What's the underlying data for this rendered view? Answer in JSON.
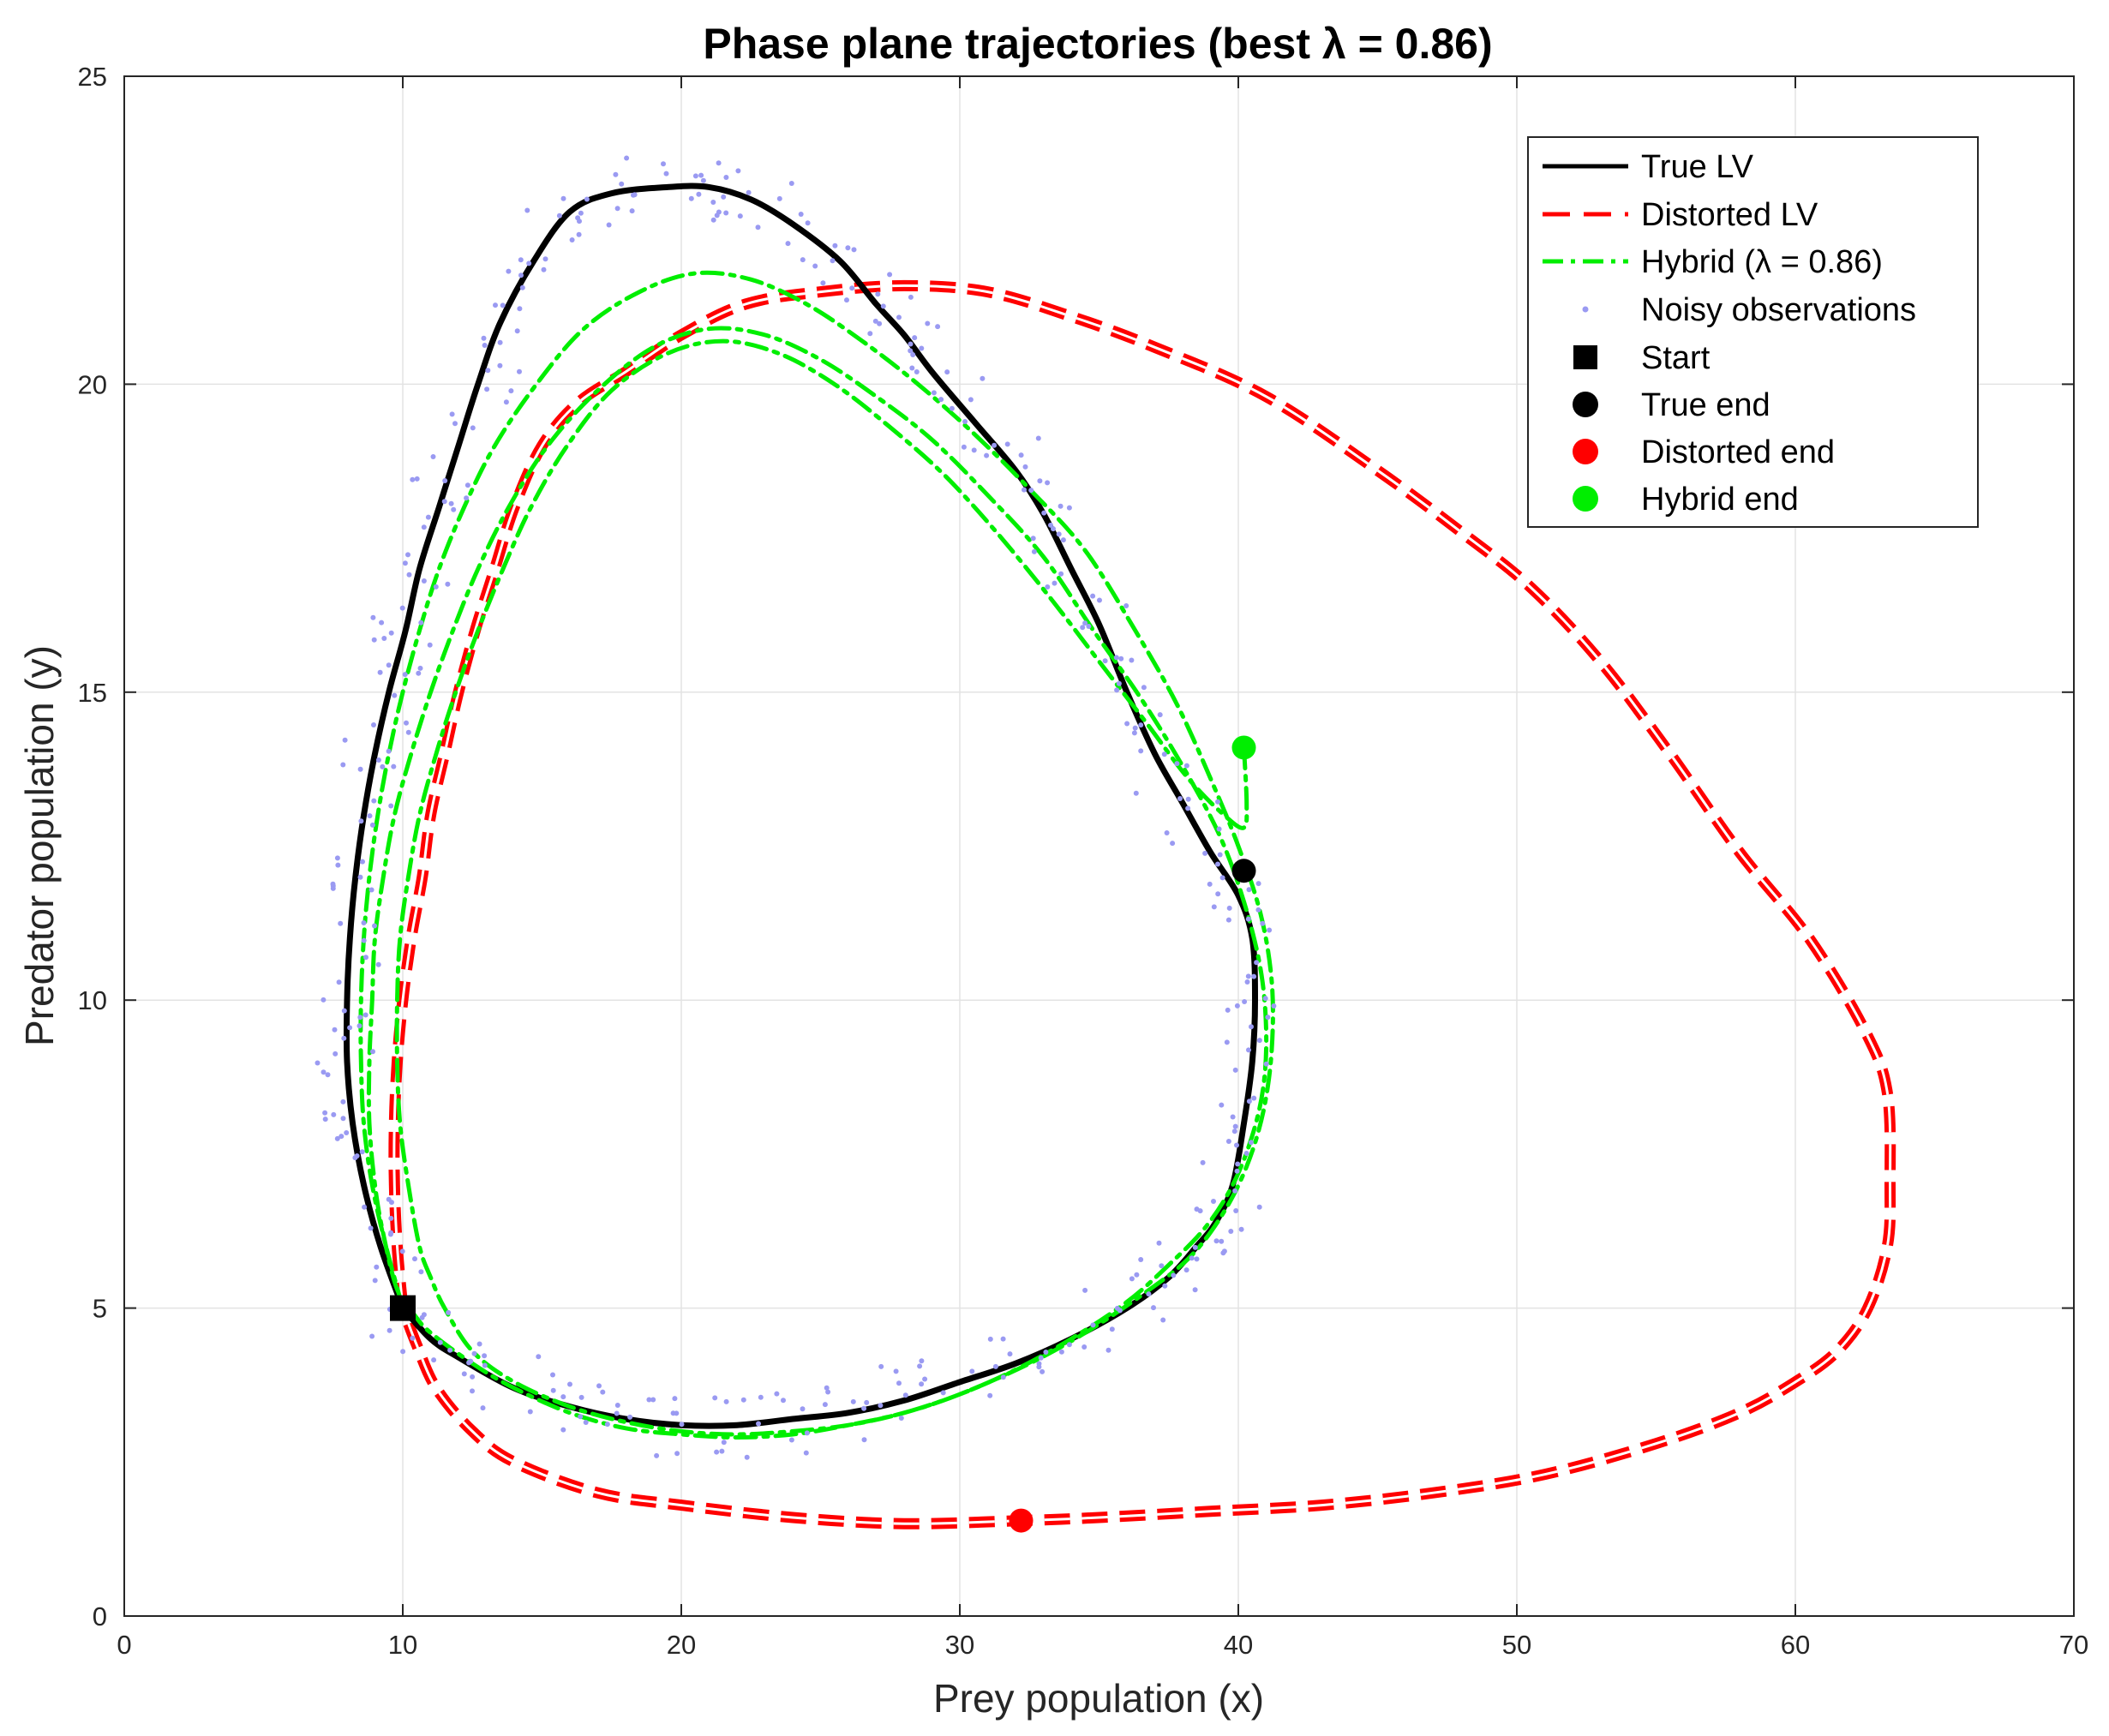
{
  "chart_data": {
    "type": "line",
    "title": "Phase plane trajectories (best λ = 0.86)",
    "xlabel": "Prey population (x)",
    "ylabel": "Predator population (y)",
    "xlim": [
      0,
      70
    ],
    "ylim": [
      0,
      25
    ],
    "xticks": [
      "0",
      "10",
      "20",
      "30",
      "40",
      "50",
      "60",
      "70"
    ],
    "yticks": [
      "0",
      "5",
      "10",
      "15",
      "20",
      "25"
    ],
    "grid": true,
    "legend_position": "top-right",
    "colors": {
      "true": "#000000",
      "distorted": "#ff0000",
      "hybrid": "#00ee00",
      "noise": "#9a9af2"
    },
    "series": [
      {
        "name": "True LV",
        "style": "solid",
        "color": "#000000",
        "points": [
          [
            10,
            5
          ],
          [
            9.2,
            6
          ],
          [
            8.6,
            7
          ],
          [
            8.2,
            8
          ],
          [
            8,
            9
          ],
          [
            8,
            10
          ],
          [
            8.1,
            11
          ],
          [
            8.3,
            12
          ],
          [
            8.6,
            13
          ],
          [
            9,
            14
          ],
          [
            9.5,
            15
          ],
          [
            10.1,
            16
          ],
          [
            10.6,
            17
          ],
          [
            11.3,
            18
          ],
          [
            12,
            19
          ],
          [
            12.7,
            20
          ],
          [
            13.5,
            21
          ],
          [
            14.7,
            22
          ],
          [
            16,
            22.8
          ],
          [
            17.5,
            23.1
          ],
          [
            19.5,
            23.2
          ],
          [
            21,
            23.2
          ],
          [
            22.5,
            23
          ],
          [
            24,
            22.6
          ],
          [
            25.7,
            22
          ],
          [
            27,
            21.3
          ],
          [
            28,
            20.8
          ],
          [
            29,
            20.2
          ],
          [
            30.5,
            19.4
          ],
          [
            32,
            18.6
          ],
          [
            33,
            17.9
          ],
          [
            34,
            17
          ],
          [
            35,
            16.1
          ],
          [
            36,
            15
          ],
          [
            37,
            14
          ],
          [
            38,
            13.2
          ],
          [
            39,
            12.4
          ],
          [
            40,
            11.7
          ],
          [
            40.5,
            11
          ],
          [
            40.6,
            10
          ],
          [
            40.5,
            9
          ],
          [
            40.2,
            8
          ],
          [
            39.8,
            7
          ],
          [
            39.2,
            6.4
          ],
          [
            38.5,
            6
          ],
          [
            37.5,
            5.5
          ],
          [
            36,
            5
          ],
          [
            34,
            4.5
          ],
          [
            32,
            4.1
          ],
          [
            30,
            3.8
          ],
          [
            28,
            3.5
          ],
          [
            26,
            3.3
          ],
          [
            24,
            3.2
          ],
          [
            22,
            3.1
          ],
          [
            20,
            3.1
          ],
          [
            18,
            3.2
          ],
          [
            16,
            3.4
          ],
          [
            14,
            3.7
          ],
          [
            12,
            4.2
          ],
          [
            11,
            4.5
          ],
          [
            10,
            5
          ]
        ]
      },
      {
        "name": "Distorted LV",
        "style": "dashed",
        "color": "#ff0000",
        "points": [
          [
            10,
            5
          ],
          [
            9.8,
            6
          ],
          [
            9.7,
            7
          ],
          [
            9.7,
            8
          ],
          [
            9.8,
            9
          ],
          [
            10,
            10
          ],
          [
            10.3,
            11
          ],
          [
            10.7,
            12
          ],
          [
            11,
            13
          ],
          [
            11.5,
            14
          ],
          [
            12,
            15
          ],
          [
            12.6,
            16
          ],
          [
            13.3,
            17
          ],
          [
            14,
            18
          ],
          [
            15,
            19
          ],
          [
            16.3,
            19.7
          ],
          [
            18,
            20.2
          ],
          [
            20,
            20.8
          ],
          [
            22.3,
            21.3
          ],
          [
            25,
            21.5
          ],
          [
            28,
            21.6
          ],
          [
            31,
            21.5
          ],
          [
            34,
            21.1
          ],
          [
            37,
            20.6
          ],
          [
            41,
            19.8
          ],
          [
            45,
            18.6
          ],
          [
            48,
            17.6
          ],
          [
            50.5,
            16.7
          ],
          [
            53,
            15.5
          ],
          [
            55.5,
            14
          ],
          [
            58,
            12.4
          ],
          [
            60.5,
            11
          ],
          [
            62.5,
            9.5
          ],
          [
            63.3,
            8.5
          ],
          [
            63.4,
            7
          ],
          [
            63.3,
            6
          ],
          [
            62.6,
            5
          ],
          [
            61.5,
            4.3
          ],
          [
            60,
            3.8
          ],
          [
            58,
            3.3
          ],
          [
            55,
            2.8
          ],
          [
            51,
            2.3
          ],
          [
            47,
            2
          ],
          [
            43,
            1.8
          ],
          [
            39,
            1.7
          ],
          [
            35,
            1.6
          ],
          [
            32.2,
            1.55
          ],
          [
            28,
            1.5
          ],
          [
            24,
            1.6
          ],
          [
            20,
            1.8
          ],
          [
            17,
            2
          ],
          [
            14,
            2.5
          ],
          [
            12.5,
            3
          ],
          [
            11.2,
            3.7
          ],
          [
            10.5,
            4.4
          ],
          [
            10,
            5
          ]
        ]
      },
      {
        "name": "Hybrid (λ = 0.86)",
        "style": "dashdot",
        "color": "#00ee00",
        "points": [
          [
            10,
            5
          ],
          [
            9.4,
            6
          ],
          [
            8.9,
            7
          ],
          [
            8.6,
            8
          ],
          [
            8.5,
            9
          ],
          [
            8.5,
            10
          ],
          [
            8.6,
            11
          ],
          [
            8.8,
            12
          ],
          [
            9.1,
            13
          ],
          [
            9.5,
            14
          ],
          [
            10,
            15
          ],
          [
            10.6,
            16
          ],
          [
            11.3,
            17
          ],
          [
            12.2,
            18
          ],
          [
            13.3,
            19
          ],
          [
            14.8,
            20
          ],
          [
            16.5,
            20.9
          ],
          [
            18.5,
            21.5
          ],
          [
            20.5,
            21.8
          ],
          [
            22.5,
            21.7
          ],
          [
            24.5,
            21.3
          ],
          [
            26.5,
            20.7
          ],
          [
            28.5,
            20
          ],
          [
            30.5,
            19.2
          ],
          [
            32.5,
            18.3
          ],
          [
            34.5,
            17.3
          ],
          [
            36.3,
            16
          ],
          [
            37.8,
            14.8
          ],
          [
            39,
            13.6
          ],
          [
            40,
            12.5
          ],
          [
            40.8,
            11.4
          ],
          [
            41.2,
            10.3
          ],
          [
            41.2,
            9.2
          ],
          [
            40.9,
            8.2
          ],
          [
            40.3,
            7.3
          ],
          [
            39.4,
            6.5
          ],
          [
            38.2,
            5.8
          ],
          [
            36.5,
            5.2
          ],
          [
            34.5,
            4.6
          ],
          [
            32.5,
            4.1
          ],
          [
            30,
            3.6
          ],
          [
            28,
            3.3
          ],
          [
            26,
            3.1
          ],
          [
            24,
            2.95
          ],
          [
            22,
            2.9
          ],
          [
            20,
            2.95
          ],
          [
            18,
            3.05
          ],
          [
            16,
            3.3
          ],
          [
            14,
            3.7
          ],
          [
            12.5,
            4.1
          ],
          [
            11,
            4.6
          ],
          [
            10.4,
            4.9
          ],
          [
            9.8,
            5.3
          ],
          [
            9.3,
            6.2
          ],
          [
            9,
            7
          ],
          [
            8.8,
            8
          ],
          [
            8.8,
            9
          ],
          [
            8.9,
            10
          ],
          [
            9,
            11
          ],
          [
            9.3,
            12
          ],
          [
            9.7,
            13
          ],
          [
            10.3,
            14
          ],
          [
            11,
            15
          ],
          [
            11.8,
            16
          ],
          [
            12.7,
            17
          ],
          [
            13.8,
            18
          ],
          [
            15.2,
            19
          ],
          [
            17,
            19.9
          ],
          [
            19,
            20.6
          ],
          [
            21,
            20.9
          ],
          [
            23,
            20.8
          ],
          [
            25,
            20.4
          ],
          [
            27,
            19.8
          ],
          [
            29,
            19.1
          ],
          [
            31,
            18.2
          ],
          [
            33,
            17.2
          ],
          [
            34.8,
            16
          ],
          [
            36.5,
            14.9
          ],
          [
            38,
            13.8
          ],
          [
            39.3,
            12.7
          ],
          [
            40.2,
            11.6
          ],
          [
            40.8,
            10.5
          ],
          [
            41,
            9.5
          ],
          [
            40.9,
            8.6
          ],
          [
            40.5,
            7.8
          ],
          [
            39.8,
            7
          ],
          [
            38.8,
            6.3
          ],
          [
            37.5,
            5.7
          ],
          [
            36,
            5.1
          ],
          [
            34,
            4.5
          ],
          [
            32,
            4
          ],
          [
            30,
            3.6
          ],
          [
            28,
            3.3
          ],
          [
            26,
            3.1
          ],
          [
            24,
            3
          ],
          [
            22,
            2.95
          ],
          [
            20,
            3
          ],
          [
            18,
            3.15
          ],
          [
            16,
            3.4
          ],
          [
            14,
            3.8
          ],
          [
            12.5,
            4.3
          ],
          [
            11.5,
            5
          ],
          [
            11,
            5.5
          ],
          [
            10.6,
            6
          ],
          [
            10.2,
            7
          ],
          [
            9.9,
            8
          ],
          [
            9.8,
            9
          ],
          [
            9.8,
            10
          ],
          [
            9.9,
            11
          ],
          [
            10.2,
            12
          ],
          [
            10.6,
            13
          ],
          [
            11.2,
            14
          ],
          [
            11.9,
            15
          ],
          [
            12.7,
            16
          ],
          [
            13.6,
            17
          ],
          [
            14.6,
            18
          ],
          [
            15.9,
            19
          ],
          [
            17.5,
            19.9
          ],
          [
            19.5,
            20.5
          ],
          [
            21.5,
            20.7
          ],
          [
            23.5,
            20.5
          ],
          [
            25.5,
            20
          ],
          [
            27.5,
            19.3
          ],
          [
            29.5,
            18.5
          ],
          [
            31.5,
            17.5
          ],
          [
            33.3,
            16.5
          ],
          [
            35,
            15.5
          ],
          [
            36.7,
            14.5
          ],
          [
            38.2,
            13.6
          ],
          [
            39.5,
            13
          ],
          [
            40.2,
            12.8
          ],
          [
            40.3,
            13.2
          ],
          [
            40.2,
            14.1
          ]
        ]
      }
    ],
    "noise_label": "Noisy observations",
    "markers": [
      {
        "name": "Start",
        "shape": "square",
        "color": "#000000",
        "x": 10,
        "y": 5
      },
      {
        "name": "True end",
        "shape": "circle",
        "color": "#000000",
        "x": 40.2,
        "y": 12.1
      },
      {
        "name": "Distorted end",
        "shape": "circle",
        "color": "#ff0000",
        "x": 32.2,
        "y": 1.55
      },
      {
        "name": "Hybrid end",
        "shape": "circle",
        "color": "#00ee00",
        "x": 40.2,
        "y": 14.1
      }
    ]
  }
}
